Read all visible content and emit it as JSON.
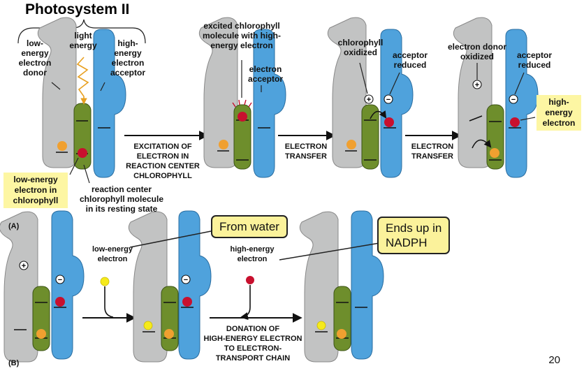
{
  "title": "Photosystem II",
  "panel_a": {
    "label": "(A)",
    "stage1": {
      "low_energy_donor": [
        "low-",
        "energy",
        "electron",
        "donor"
      ],
      "light_energy": [
        "light",
        "energy"
      ],
      "high_energy_acceptor": [
        "high-",
        "energy",
        "electron",
        "acceptor"
      ],
      "highlight_low_energy": [
        "low-energy",
        "electron in",
        "chlorophyll"
      ],
      "reaction_center": [
        "reaction center",
        "chlorophyll molecule",
        "in its resting state"
      ]
    },
    "step1": [
      "EXCITATION OF",
      "ELECTRON IN",
      "REACTION CENTER",
      "CHLOROPHYLL"
    ],
    "stage2": {
      "excited": [
        "excited chlorophyll",
        "molecule with high-",
        "energy electron"
      ],
      "acceptor": [
        "electron",
        "acceptor"
      ]
    },
    "step2": [
      "ELECTRON",
      "TRANSFER"
    ],
    "stage3": {
      "chl_oxidized": [
        "chlorophyll",
        "oxidized"
      ],
      "acceptor_reduced": [
        "acceptor",
        "reduced"
      ]
    },
    "step3": [
      "ELECTRON",
      "TRANSFER"
    ],
    "stage4": {
      "donor_oxidized": [
        "electron donor",
        "oxidized"
      ],
      "acceptor_reduced": [
        "acceptor",
        "reduced"
      ],
      "highlight_high_energy": [
        "high-",
        "energy",
        "electron"
      ]
    }
  },
  "panel_b": {
    "label": "(B)",
    "low_energy_electron": [
      "low-energy",
      "electron"
    ],
    "high_energy_electron": [
      "high-energy",
      "electron"
    ],
    "donation": [
      "DONATION OF",
      "HIGH-ENERGY ELECTRON",
      "TO ELECTRON-",
      "TRANSPORT CHAIN"
    ]
  },
  "callouts": {
    "from_water": "From water",
    "ends_up": [
      "Ends up in",
      "NADPH"
    ]
  },
  "page_number": "20",
  "symbols": {
    "plus": "+",
    "minus": "−"
  },
  "colors": {
    "donor": "#c2c3c3",
    "chlorophyll": "#6e8e2c",
    "acceptor": "#4fa2dc",
    "electron_high": "#c8102e",
    "electron_low_orange": "#f0a030",
    "electron_yellow": "#f5ea1c",
    "highlight": "#fdf6a3",
    "light_arrow": "#e8a020"
  },
  "icons": [
    "lightning-arrow-icon",
    "plus-charge-icon",
    "minus-charge-icon",
    "curved-arrow-icon"
  ]
}
